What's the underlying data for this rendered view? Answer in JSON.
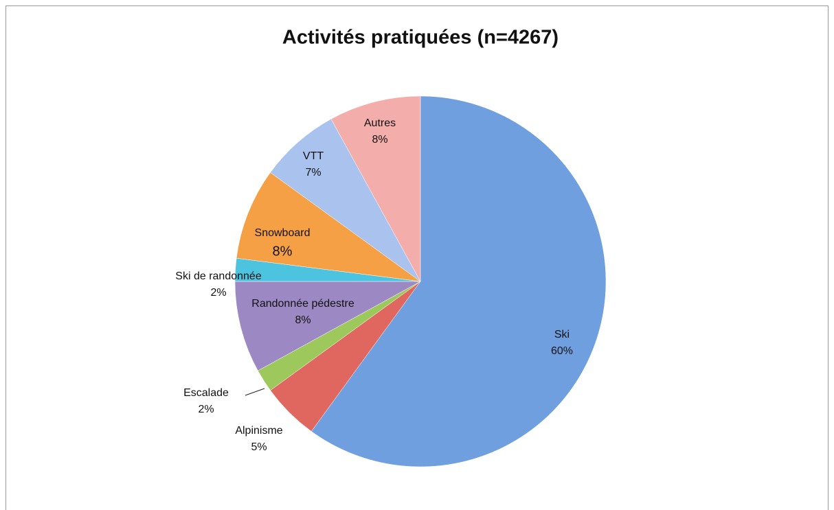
{
  "chart_data": {
    "type": "pie",
    "title": "Activités pratiquées (n=4267)",
    "categories": [
      "Ski",
      "Alpinisme",
      "Escalade",
      "Randonnée pédestre",
      "Ski de randonnée",
      "Snowboard",
      "VTT",
      "Autres"
    ],
    "values": [
      60,
      5,
      2,
      8,
      2,
      8,
      7,
      8
    ],
    "value_labels": [
      "60%",
      "5%",
      "2%",
      "8%",
      "2%",
      "8%",
      "7%",
      "8%"
    ],
    "colors": [
      "#6f9fdf",
      "#e0675f",
      "#9cc85c",
      "#9c88c2",
      "#4cc3df",
      "#f5a044",
      "#a9c3ee",
      "#f3adab"
    ]
  }
}
